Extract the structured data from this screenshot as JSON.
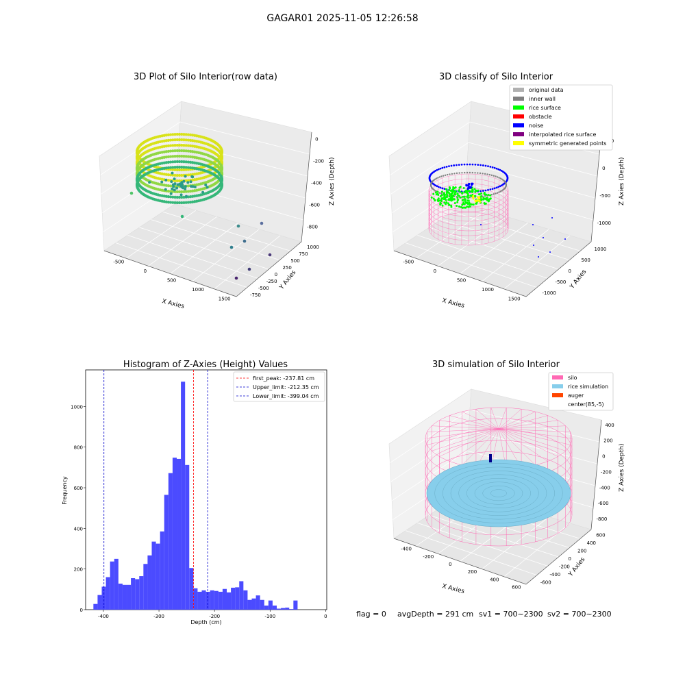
{
  "suptitle": "GAGAR01 2025-11-05 12:26:58",
  "colors": {
    "hist_bar": "#4b4bff",
    "peak_line": "#ff0000",
    "limit_line": "#0000cc",
    "silo": "#ff69b4",
    "rice": "#87ceeb",
    "auger": "#ff4500",
    "surface_green": "#00ff00",
    "noise_blue": "#0000ff",
    "viridis_high": "#c8e020",
    "viridis_low": "#2a9a8a"
  },
  "chart_data": [
    {
      "type": "scatter",
      "projection": "3d",
      "title": "3D Plot of Silo Interior(row data)",
      "xlabel": "X Axies",
      "ylabel": "Y Axies",
      "zlabel": "Z Axies (Depth)",
      "x_ticks": [
        "-500",
        "0",
        "500",
        "1000",
        "1500"
      ],
      "y_ticks": [
        "-750",
        "-500",
        "-250",
        "0",
        "250",
        "500",
        "750",
        "1000"
      ],
      "z_ticks": [
        "0",
        "-200",
        "-400",
        "-600",
        "-800"
      ],
      "colormap": "viridis"
    },
    {
      "type": "scatter",
      "projection": "3d",
      "title": "3D classify of Silo Interior",
      "xlabel": "X Axies",
      "ylabel": "Y Axies",
      "zlabel": "Z Axies (Depth)",
      "x_ticks": [
        "-500",
        "0",
        "500",
        "1000",
        "1500"
      ],
      "y_ticks": [
        "-1000",
        "-500",
        "0",
        "500",
        "1000"
      ],
      "z_ticks": [
        "500",
        "0",
        "-500",
        "-1000"
      ],
      "legend": [
        {
          "label": "original data",
          "color": "#b0b0b0"
        },
        {
          "label": "inner wall",
          "color": "#808080"
        },
        {
          "label": "rice surface",
          "color": "#00ff00"
        },
        {
          "label": "obstacle",
          "color": "#ff0000"
        },
        {
          "label": "noise",
          "color": "#0000ff"
        },
        {
          "label": "interpolated rice surface",
          "color": "#800080"
        },
        {
          "label": "symmetric generated points",
          "color": "#ffff00"
        }
      ],
      "legend_loc": "upper right"
    },
    {
      "type": "bar",
      "subtype": "histogram",
      "title": "Histogram of Z-Axies (Height) Values",
      "xlabel": "Depth (cm)",
      "ylabel": "Frequency",
      "xlim": [
        -432,
        2
      ],
      "ylim": [
        0,
        1180
      ],
      "x_ticks": [
        -400,
        -300,
        -200,
        -100,
        0
      ],
      "y_ticks": [
        0,
        200,
        400,
        600,
        800,
        1000
      ],
      "bin_width": 7.5,
      "bins_start": -418,
      "values": [
        28,
        72,
        113,
        160,
        237,
        250,
        128,
        122,
        122,
        155,
        150,
        165,
        225,
        267,
        335,
        325,
        385,
        565,
        672,
        748,
        742,
        1122,
        712,
        205,
        105,
        88,
        95,
        88,
        95,
        92,
        88,
        102,
        85,
        108,
        110,
        140,
        95,
        48,
        55,
        70,
        48,
        20,
        45,
        20,
        5,
        8,
        10,
        3,
        45
      ],
      "vlines": [
        {
          "label": "first_peak: -237.81 cm",
          "x": -237.81,
          "color": "#ff0000"
        },
        {
          "label": "Upper_limit: -212.35 cm",
          "x": -212.35,
          "color": "#0000cc"
        },
        {
          "label": "Lower_limit: -399.04 cm",
          "x": -399.04,
          "color": "#0000cc"
        }
      ],
      "legend_loc": "upper right"
    },
    {
      "type": "scatter",
      "projection": "3d",
      "title": "3D simulation of Silo Interior",
      "xlabel": "X Axies",
      "ylabel": "Y Axies",
      "zlabel": "Z Axies (Depth)",
      "x_ticks": [
        "-400",
        "-200",
        "0",
        "200",
        "400",
        "600"
      ],
      "y_ticks": [
        "-600",
        "-400",
        "-200",
        "0",
        "200",
        "400",
        "600"
      ],
      "z_ticks": [
        "400",
        "200",
        "0",
        "-200",
        "-400",
        "-600",
        "-800"
      ],
      "legend": [
        {
          "label": "silo",
          "color": "#ff69b4"
        },
        {
          "label": "rice simulation",
          "color": "#87ceeb"
        },
        {
          "label": "auger",
          "color": "#ff4500"
        },
        {
          "label": "center(85,-5)",
          "color": ""
        }
      ],
      "legend_loc": "upper right"
    }
  ],
  "status": {
    "flag": "flag = 0",
    "avg_depth": "avgDepth = 291 cm",
    "sv1": "sv1 = 700~2300",
    "sv2": "sv2 = 700~2300"
  }
}
